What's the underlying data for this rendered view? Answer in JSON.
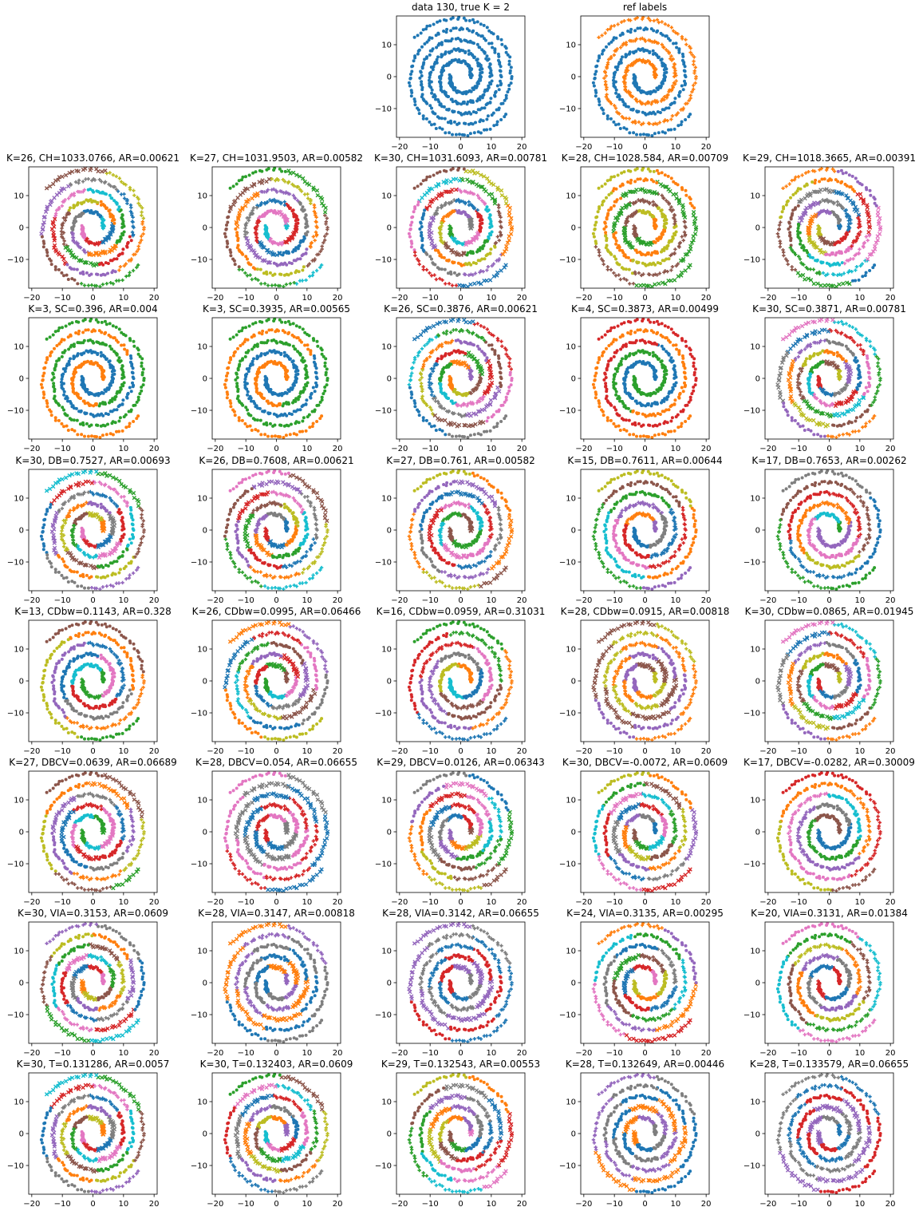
{
  "figure": {
    "background": "#ffffff",
    "palette": [
      "#1f77b4",
      "#ff7f0e",
      "#2ca02c",
      "#d62728",
      "#9467bd",
      "#8c564b",
      "#e377c2",
      "#7f7f7f",
      "#bcbd22",
      "#17becf"
    ]
  },
  "chart_data": [
    {
      "type": "scatter",
      "title": "data 130, true K = 2",
      "k": 1,
      "marker_style": "uniform",
      "xlim": [
        -21,
        21
      ],
      "ylim": [
        -19,
        19
      ],
      "xticks": [
        -20,
        -10,
        0,
        10,
        20
      ],
      "yticks": [
        -10,
        0,
        10
      ],
      "grid": false
    },
    {
      "type": "scatter",
      "title": "ref labels",
      "k": 2,
      "marker_style": "ref",
      "xlim": [
        -21,
        21
      ],
      "ylim": [
        -19,
        19
      ],
      "xticks": [
        -20,
        -10,
        0,
        10,
        20
      ],
      "yticks": [
        -10,
        0,
        10
      ],
      "grid": false
    },
    {
      "type": "scatter",
      "title": "K=26, CH=1033.0766, AR=0.00621",
      "k": 26
    },
    {
      "type": "scatter",
      "title": "K=27, CH=1031.9503, AR=0.00582",
      "k": 27
    },
    {
      "type": "scatter",
      "title": "K=30, CH=1031.6093, AR=0.00781",
      "k": 30
    },
    {
      "type": "scatter",
      "title": "K=28, CH=1028.584, AR=0.00709",
      "k": 28
    },
    {
      "type": "scatter",
      "title": "K=29, CH=1018.3665, AR=0.00391",
      "k": 29
    },
    {
      "type": "scatter",
      "title": "K=3, SC=0.396, AR=0.004",
      "k": 3
    },
    {
      "type": "scatter",
      "title": "K=3, SC=0.3935, AR=0.00565",
      "k": 3
    },
    {
      "type": "scatter",
      "title": "K=26, SC=0.3876, AR=0.00621",
      "k": 26
    },
    {
      "type": "scatter",
      "title": "K=4, SC=0.3873, AR=0.00499",
      "k": 4
    },
    {
      "type": "scatter",
      "title": "K=30, SC=0.3871, AR=0.00781",
      "k": 30
    },
    {
      "type": "scatter",
      "title": "K=30, DB=0.7527, AR=0.00693",
      "k": 30
    },
    {
      "type": "scatter",
      "title": "K=26, DB=0.7608, AR=0.00621",
      "k": 26
    },
    {
      "type": "scatter",
      "title": "K=27, DB=0.761, AR=0.00582",
      "k": 27
    },
    {
      "type": "scatter",
      "title": "K=15, DB=0.7611, AR=0.00644",
      "k": 15
    },
    {
      "type": "scatter",
      "title": "K=17, DB=0.7653, AR=0.00262",
      "k": 17
    },
    {
      "type": "scatter",
      "title": "K=13, CDbw=0.1143, AR=0.328",
      "k": 13
    },
    {
      "type": "scatter",
      "title": "K=26, CDbw=0.0995, AR=0.06466",
      "k": 26
    },
    {
      "type": "scatter",
      "title": "K=16, CDbw=0.0959, AR=0.31031",
      "k": 16
    },
    {
      "type": "scatter",
      "title": "K=28, CDbw=0.0915, AR=0.00818",
      "k": 28
    },
    {
      "type": "scatter",
      "title": "K=30, CDbw=0.0865, AR=0.01945",
      "k": 30
    },
    {
      "type": "scatter",
      "title": "K=27, DBCV=0.0639, AR=0.06689",
      "k": 27
    },
    {
      "type": "scatter",
      "title": "K=28, DBCV=0.054, AR=0.06655",
      "k": 28
    },
    {
      "type": "scatter",
      "title": "K=29, DBCV=0.0126, AR=0.06343",
      "k": 29
    },
    {
      "type": "scatter",
      "title": "K=30, DBCV=-0.0072, AR=0.0609",
      "k": 30
    },
    {
      "type": "scatter",
      "title": "K=17, DBCV=-0.0282, AR=0.30009",
      "k": 17
    },
    {
      "type": "scatter",
      "title": "K=30, VIA=0.3153, AR=0.0609",
      "k": 30
    },
    {
      "type": "scatter",
      "title": "K=28, VIA=0.3147, AR=0.00818",
      "k": 28
    },
    {
      "type": "scatter",
      "title": "K=28, VIA=0.3142, AR=0.06655",
      "k": 28
    },
    {
      "type": "scatter",
      "title": "K=24, VIA=0.3135, AR=0.00295",
      "k": 24
    },
    {
      "type": "scatter",
      "title": "K=20, VIA=0.3131, AR=0.01384",
      "k": 20
    },
    {
      "type": "scatter",
      "title": "K=30, T=0.131286, AR=0.0057",
      "k": 30
    },
    {
      "type": "scatter",
      "title": "K=30, T=0.132403, AR=0.0609",
      "k": 30
    },
    {
      "type": "scatter",
      "title": "K=29, T=0.132543, AR=0.00553",
      "k": 29
    },
    {
      "type": "scatter",
      "title": "K=28, T=0.132649, AR=0.00446",
      "k": 28
    },
    {
      "type": "scatter",
      "title": "K=28, T=0.133579, AR=0.06655",
      "k": 28
    }
  ]
}
